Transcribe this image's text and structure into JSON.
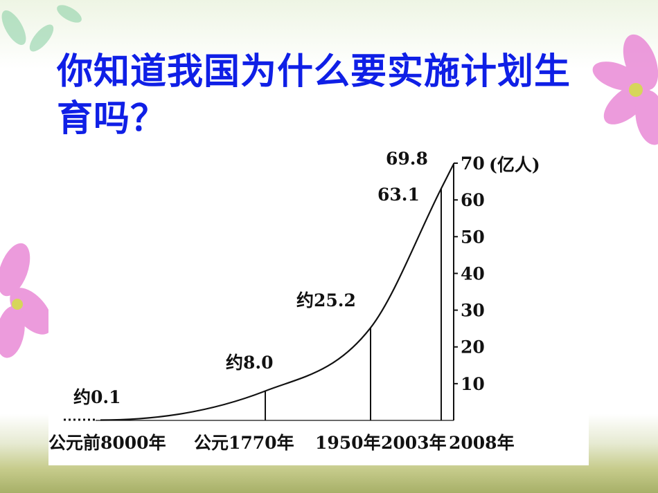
{
  "title": "你知道我国为什么要实施计划生育吗？",
  "chart_data": {
    "type": "line",
    "title": "",
    "xlabel": "",
    "ylabel": "(亿人)",
    "ylim": [
      0,
      70
    ],
    "y_ticks": [
      "10",
      "20",
      "30",
      "40",
      "50",
      "60",
      "70"
    ],
    "x_tick_labels": [
      "公元前8000年",
      "公元1770年",
      "1950年",
      "2003年",
      "2008年"
    ],
    "points": [
      {
        "year": "公元前8000年",
        "value": 0.1,
        "label": "约0.1"
      },
      {
        "year": "公元1770年",
        "value": 8.0,
        "label": "约8.0"
      },
      {
        "year": "1950年",
        "value": 25.2,
        "label": "约25.2"
      },
      {
        "year": "2003年",
        "value": 63.1,
        "label": "63.1"
      },
      {
        "year": "2008年",
        "value": 69.8,
        "label": "69.8"
      }
    ],
    "colors": {
      "line": "#111111",
      "title": "#0f1fe6"
    }
  }
}
